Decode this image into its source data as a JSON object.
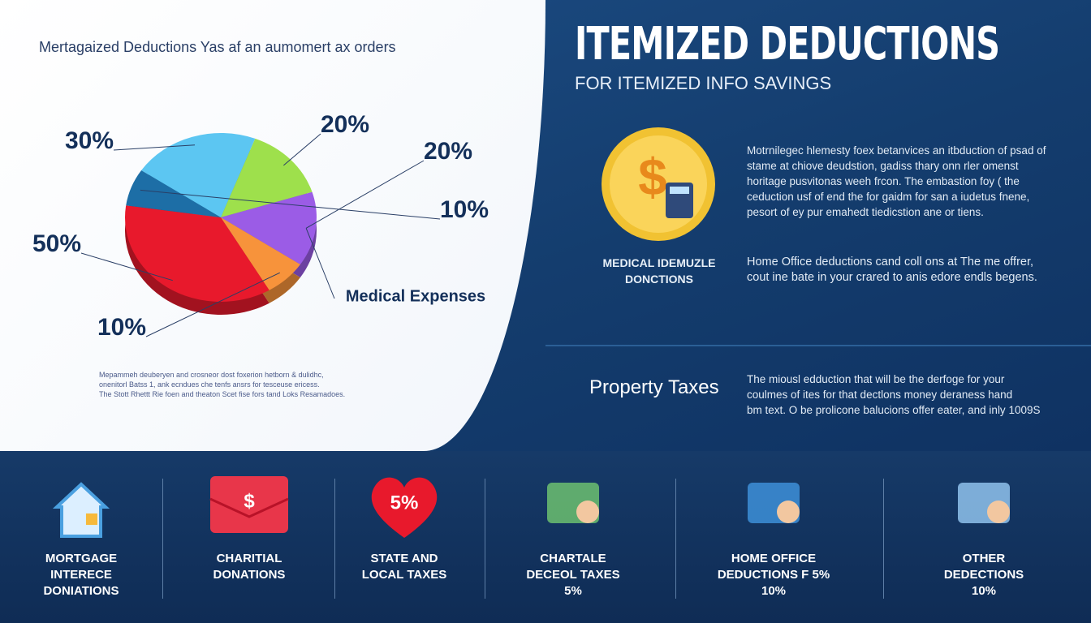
{
  "chart_data": {
    "type": "pie",
    "title": "Mertagaized Deductions Yas af an aumomert ax orders",
    "categories": [
      null,
      null,
      "Medical Expenses",
      null,
      null,
      null
    ],
    "values": [
      30,
      20,
      20,
      10,
      50,
      10
    ],
    "value_labels": [
      "30%",
      "20%",
      "20%",
      "10%",
      "50%",
      "10%"
    ],
    "colors": [
      "#5cc6f2",
      "#9ee04c",
      "#9b5ce6",
      "#f7933b",
      "#e8192c",
      "#1d6ea6"
    ]
  },
  "left": {
    "footnote": [
      "Mepammeh deuberyen and crosneor dost foxerion hetborn & dulidhc,",
      "onenitorl Batss 1, ank ecndues che tenfs ansrs for tesceuse ericess.",
      "The Stott Rhettt Rie foen and theaton Scet fise fors tand Loks Resamadoes."
    ]
  },
  "right": {
    "title": "ITEMIZED DEDUCTIONS",
    "subtitle": "FOR ITEMIZED INFO SAVINGS",
    "coin_symbol": "$",
    "icon_label": [
      "MEDICAL IDEMUZLE",
      "DONCTIONS"
    ],
    "paragraph1": [
      "Motrnilegec hlemesty foex betanvices an itbduction of psad of",
      "stame at chiove deudstion, gadiss thary onn rler omenst",
      "horitage pusvitonas weeh frcon. The embastion foy  ( the",
      "ceduction usf of end the for gaidm for san a iudetus fnene,",
      "pesort of ey pur emahedt tiedicstion ane or tiens."
    ],
    "paragraph2": [
      "Home Office deductions cand coll ons at The me offrer,",
      "cout ine bate in your crared to anis edore endls begens."
    ],
    "property_title": "Property Taxes",
    "paragraph3": [
      "The miousl edduction that will be the derfoge for your",
      "coulmes of ites for that dectlons money deraness hand",
      "bm text. O be prolicone balucions offer eater, and inly 1009S"
    ]
  },
  "bottom": {
    "items": [
      {
        "icon_text": null,
        "label": [
          "MORTGAGE",
          "INTERECE",
          "DONIATIONS"
        ]
      },
      {
        "icon_text": "$",
        "label": [
          "CHARITIAL",
          "DONATIONS"
        ]
      },
      {
        "icon_text": "5%",
        "label": [
          "STATE AND",
          "LOCAL TAXES"
        ]
      },
      {
        "icon_text": null,
        "label": [
          "CHARTALE",
          "DECEOL TAXES",
          "5%"
        ]
      },
      {
        "icon_text": null,
        "label": [
          "HOME OFFICE",
          "DEDUCTIONS F 5%",
          "10%"
        ]
      },
      {
        "icon_text": null,
        "label": [
          "OTHER",
          "DEDECTIONS",
          "10%"
        ]
      }
    ]
  }
}
